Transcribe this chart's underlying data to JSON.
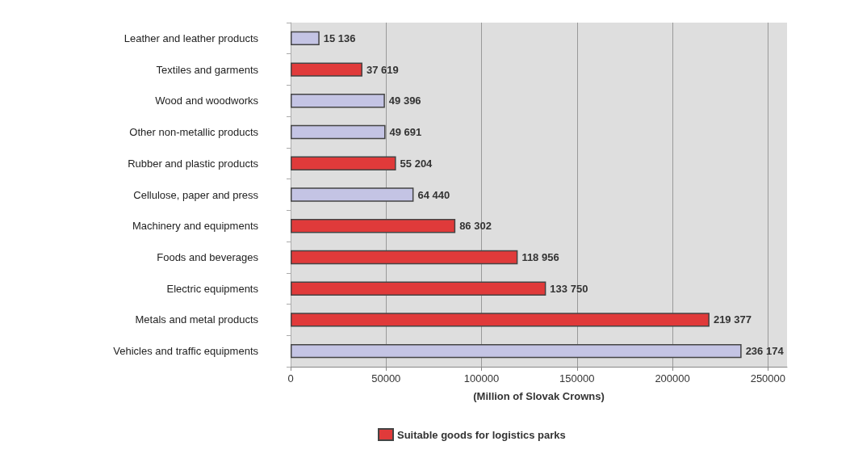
{
  "chart_data": {
    "type": "bar",
    "orientation": "horizontal",
    "stacked": true,
    "xlabel": "(Million of Slovak Crowns)",
    "categories": [
      "Leather and leather products",
      "Textiles and garments",
      "Wood and woodworks",
      "Other non-metallic products",
      "Rubber and plastic products",
      "Cellulose, paper and press",
      "Machinery and equipments",
      "Foods and beverages",
      "Electric equipments",
      "Metals and metal products",
      "Vehicles and traffic equipments"
    ],
    "series": [
      {
        "name": "Suitable goods for logistics parks",
        "color": "#e03a3a",
        "values": [
          null,
          37619,
          null,
          null,
          55204,
          null,
          86302,
          118956,
          133750,
          219377,
          null
        ],
        "value_labels": [
          null,
          "37 619",
          null,
          null,
          "55 204",
          null,
          "86 302",
          "118 956",
          "133 750",
          "219 377",
          null
        ]
      },
      {
        "color": "#c4c4e4",
        "values": [
          15136,
          null,
          49396,
          49691,
          null,
          64440,
          null,
          null,
          null,
          null,
          236174
        ],
        "value_labels": [
          "15 136",
          null,
          "49 396",
          "49 691",
          null,
          "64 440",
          null,
          null,
          null,
          null,
          "236 174"
        ]
      }
    ],
    "xlim": [
      0,
      260000
    ],
    "xticks": [
      0,
      50000,
      100000,
      150000,
      200000,
      250000
    ],
    "grid": "x",
    "legend": "bottom"
  }
}
